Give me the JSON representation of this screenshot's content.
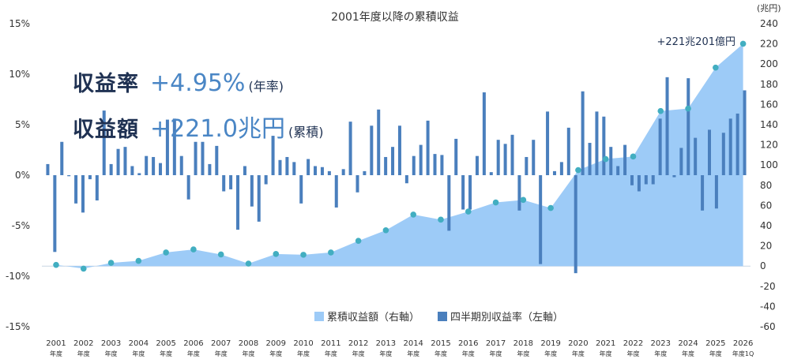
{
  "chart_data": {
    "type": "bar+area",
    "title": "2001年度以降の累積収益",
    "right_unit": "(兆円)",
    "annotation": "+221兆201億円",
    "left_ylim": [
      -15,
      15
    ],
    "left_ticks": [
      "15%",
      "10%",
      "5%",
      "0%",
      "-5%",
      "-10%",
      "-15%"
    ],
    "right_ylim": [
      -60,
      240
    ],
    "right_ticks": [
      240,
      220,
      200,
      180,
      160,
      140,
      120,
      100,
      80,
      60,
      40,
      20,
      0,
      -20,
      -40,
      -60
    ],
    "x_labels": [
      {
        "year": "2001",
        "sub": "年度"
      },
      {
        "year": "2002",
        "sub": "年度"
      },
      {
        "year": "2003",
        "sub": "年度"
      },
      {
        "year": "2004",
        "sub": "年度"
      },
      {
        "year": "2005",
        "sub": "年度"
      },
      {
        "year": "2006",
        "sub": "年度"
      },
      {
        "year": "2007",
        "sub": "年度"
      },
      {
        "year": "2008",
        "sub": "年度"
      },
      {
        "year": "2009",
        "sub": "年度"
      },
      {
        "year": "2010",
        "sub": "年度"
      },
      {
        "year": "2011",
        "sub": "年度"
      },
      {
        "year": "2012",
        "sub": "年度"
      },
      {
        "year": "2013",
        "sub": "年度"
      },
      {
        "year": "2014",
        "sub": "年度"
      },
      {
        "year": "2015",
        "sub": "年度"
      },
      {
        "year": "2016",
        "sub": "年度"
      },
      {
        "year": "2017",
        "sub": "年度"
      },
      {
        "year": "2018",
        "sub": "年度"
      },
      {
        "year": "2019",
        "sub": "年度"
      },
      {
        "year": "2020",
        "sub": "年度"
      },
      {
        "year": "2021",
        "sub": "年度"
      },
      {
        "year": "2022",
        "sub": "年度"
      },
      {
        "year": "2023",
        "sub": "年度"
      },
      {
        "year": "2024",
        "sub": "年度"
      },
      {
        "year": "2025",
        "sub": "年度"
      },
      {
        "year": "2026",
        "sub": "年度1Q"
      }
    ],
    "cumulative": {
      "name": "累積収益額（右軸）",
      "values": [
        1.2,
        -2.5,
        3.2,
        5.2,
        13.5,
        16.5,
        11.5,
        2.5,
        12.0,
        11.2,
        13.5,
        25.0,
        35.5,
        51.0,
        46.0,
        54.0,
        63.0,
        65.5,
        57.5,
        95.0,
        106.0,
        108.5,
        153.5,
        156.0,
        196.5,
        220.1
      ],
      "color": "#9dcbf7",
      "dot_color": "#42aec1"
    },
    "quarterly": {
      "name": "四半期別収益率（左軸）",
      "values": [
        1.1,
        -7.6,
        3.3,
        -0.1,
        -2.8,
        -3.7,
        -0.4,
        -2.5,
        6.4,
        1.1,
        2.6,
        2.8,
        0.9,
        0.2,
        1.9,
        1.8,
        1.2,
        5.5,
        5.6,
        1.9,
        -2.4,
        3.3,
        3.3,
        1.1,
        2.9,
        -1.6,
        -1.4,
        -5.4,
        0.9,
        -3.1,
        -4.6,
        -0.9,
        3.9,
        1.5,
        1.8,
        1.3,
        -2.8,
        1.6,
        0.9,
        0.8,
        0.4,
        -3.2,
        0.6,
        5.3,
        -1.7,
        0.4,
        4.9,
        6.5,
        1.8,
        2.8,
        4.9,
        -0.8,
        1.9,
        3.0,
        5.4,
        2.1,
        2.0,
        -5.5,
        3.6,
        -3.4,
        -3.4,
        1.9,
        8.2,
        0.3,
        3.5,
        3.1,
        4.0,
        -3.5,
        1.8,
        3.5,
        -8.8,
        6.3,
        0.4,
        1.3,
        4.7,
        -9.7,
        8.3,
        3.2,
        6.3,
        5.8,
        2.8,
        0.9,
        3.0,
        -1.0,
        -1.6,
        -0.9,
        -0.9,
        5.6,
        9.7,
        -0.2,
        2.7,
        9.6,
        3.7,
        -3.5,
        4.5,
        -3.3,
        4.2,
        5.6,
        6.1,
        8.4
      ],
      "color": "#4a7fbd"
    },
    "legend_position": "bottom-center"
  },
  "kpis": {
    "rate_label": "収益率",
    "rate_value": "+4.95%",
    "rate_note": "(年率)",
    "amount_label": "収益額",
    "amount_value": "+221.0兆円",
    "amount_note": "(累積)"
  }
}
